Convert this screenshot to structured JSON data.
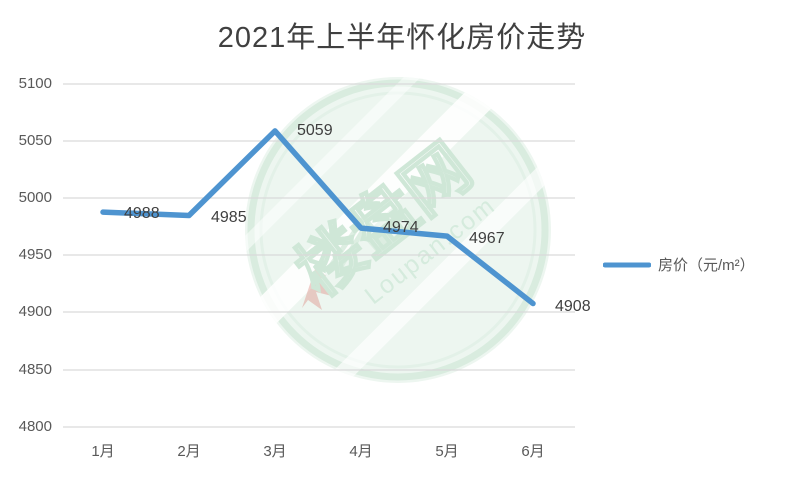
{
  "chart_data": {
    "type": "line",
    "title": "2021年上半年怀化房价走势",
    "categories": [
      "1月",
      "2月",
      "3月",
      "4月",
      "5月",
      "6月"
    ],
    "series": [
      {
        "name": "房价（元/m²）",
        "values": [
          4988,
          4985,
          5059,
          4974,
          4967,
          4908
        ],
        "labels": [
          "4988",
          "4985",
          "5059",
          "4974",
          "4967",
          "4908"
        ]
      }
    ],
    "yticks": [
      "5100",
      "5050",
      "5000",
      "4950",
      "4900",
      "4850",
      "4800"
    ],
    "ylim": [
      4800,
      5100
    ],
    "ytick_step": 50,
    "grid": true,
    "legend_position": "right",
    "legend": {
      "label": "房价（元/m²）"
    },
    "colors": {
      "series_line": "#4e94d0",
      "gridline": "#d9d9d9",
      "title_text": "#404040",
      "tick_text": "#595959",
      "data_label_text": "#3f3f3f",
      "watermark_green": "#d9ecdf",
      "watermark_fill": "#edf6f0",
      "watermark_red": "#d86a60"
    },
    "watermark": {
      "text_cn": "楼盘网",
      "text_en": "Loupan.com"
    }
  }
}
